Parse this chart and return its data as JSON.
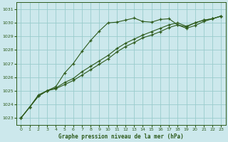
{
  "title": "Graphe pression niveau de la mer (hPa)",
  "background_color": "#cce8ec",
  "plot_bg_color": "#cce8ec",
  "grid_color": "#99cccc",
  "line_color": "#2d5a1b",
  "xlim": [
    -0.5,
    23.5
  ],
  "ylim": [
    1022.5,
    1031.5
  ],
  "yticks": [
    1023,
    1024,
    1025,
    1026,
    1027,
    1028,
    1029,
    1030,
    1031
  ],
  "xticks": [
    0,
    1,
    2,
    3,
    4,
    5,
    6,
    7,
    8,
    9,
    10,
    11,
    12,
    13,
    14,
    15,
    16,
    17,
    18,
    19,
    20,
    21,
    22,
    23
  ],
  "series_peak": [
    1023.0,
    1023.8,
    1024.7,
    1025.0,
    1025.3,
    1026.3,
    1027.0,
    1027.9,
    1028.7,
    1029.4,
    1030.0,
    1030.05,
    1030.2,
    1030.35,
    1030.1,
    1030.05,
    1030.25,
    1030.3,
    1029.85,
    1029.6,
    1029.8,
    1030.1,
    1030.3,
    1030.5
  ],
  "series_mid1": [
    1023.0,
    1023.8,
    1024.6,
    1025.0,
    1025.2,
    1025.6,
    1025.9,
    1026.4,
    1026.8,
    1027.2,
    1027.6,
    1028.1,
    1028.5,
    1028.8,
    1029.1,
    1029.35,
    1029.6,
    1029.85,
    1030.0,
    1029.75,
    1030.0,
    1030.2,
    1030.3,
    1030.5
  ],
  "series_mid2": [
    1023.0,
    1023.8,
    1024.6,
    1025.0,
    1025.15,
    1025.45,
    1025.75,
    1026.15,
    1026.55,
    1026.95,
    1027.35,
    1027.85,
    1028.25,
    1028.55,
    1028.9,
    1029.1,
    1029.35,
    1029.65,
    1029.85,
    1029.7,
    1030.0,
    1030.2,
    1030.3,
    1030.5
  ]
}
